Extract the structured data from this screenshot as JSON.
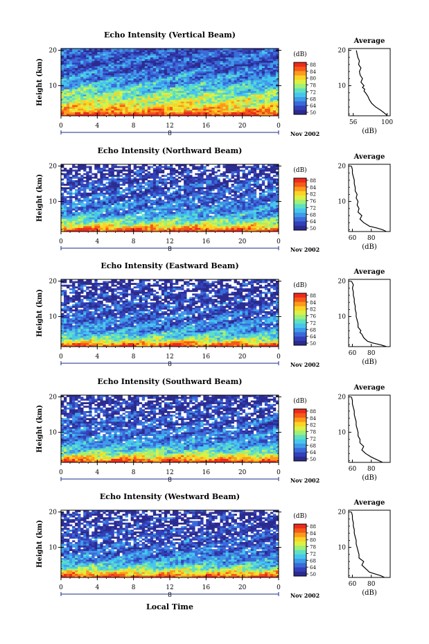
{
  "figure": {
    "date_label": "Nov 2002",
    "day_label": "8",
    "xlabel": "Local Time",
    "ylabel": "Height (km)",
    "colorbar_unit": "(dB)",
    "average_title": "Average",
    "average_xlabel": "(dB)"
  },
  "colormap": [
    "#2b2b8f",
    "#3340b8",
    "#3a6ad8",
    "#3f9be8",
    "#46c6ee",
    "#5fe0c0",
    "#9ef07a",
    "#dcf044",
    "#fcd324",
    "#fb9a1c",
    "#f55a18",
    "#ef2a1c"
  ],
  "chart_data": [
    {
      "type": "heatmap",
      "title": "Echo Intensity (Vertical Beam)",
      "xlabel": "Local Time",
      "ylabel": "Height (km)",
      "x_ticks": [
        "0",
        "4",
        "8",
        "12",
        "16",
        "20",
        "0"
      ],
      "y_ticks": [
        "10",
        "20"
      ],
      "xlim": [
        0,
        24
      ],
      "ylim": [
        1.5,
        20.5
      ],
      "colorbar": {
        "label": "(dB)",
        "ticks": [
          "50",
          "64",
          "68",
          "72",
          "78",
          "80",
          "84",
          "88"
        ],
        "range": [
          50,
          88
        ]
      },
      "profile_db": [
        [
          1.5,
          88
        ],
        [
          3,
          79
        ],
        [
          5,
          74
        ],
        [
          8,
          68
        ],
        [
          12,
          60
        ],
        [
          16,
          56
        ],
        [
          20,
          54
        ]
      ],
      "average_profile": {
        "title": "Average",
        "xlabel": "(dB)",
        "x_ticks": [
          "56",
          "100"
        ],
        "y_ticks": [
          "10",
          "20"
        ],
        "xlim": [
          50,
          104
        ],
        "ylim": [
          1.5,
          20.5
        ],
        "points": [
          [
            1.5,
            100
          ],
          [
            2,
            98
          ],
          [
            3,
            92
          ],
          [
            4,
            85
          ],
          [
            5,
            80
          ],
          [
            6,
            77
          ],
          [
            7,
            75
          ],
          [
            8,
            72
          ],
          [
            8.5,
            70
          ],
          [
            9,
            71
          ],
          [
            9.5,
            68
          ],
          [
            10,
            70
          ],
          [
            11,
            66
          ],
          [
            12,
            68
          ],
          [
            13,
            65
          ],
          [
            14,
            64
          ],
          [
            15,
            66
          ],
          [
            16,
            63
          ],
          [
            17,
            64
          ],
          [
            18,
            62
          ],
          [
            19,
            61
          ],
          [
            20,
            60
          ]
        ]
      }
    },
    {
      "type": "heatmap",
      "title": "Echo Intensity (Northward Beam)",
      "xlabel": "Local Time",
      "ylabel": "Height (km)",
      "x_ticks": [
        "0",
        "4",
        "8",
        "12",
        "16",
        "20",
        "0"
      ],
      "y_ticks": [
        "10",
        "20"
      ],
      "xlim": [
        0,
        24
      ],
      "ylim": [
        1.5,
        20.5
      ],
      "colorbar": {
        "label": "(dB)",
        "ticks": [
          "50",
          "64",
          "68",
          "72",
          "76",
          "82",
          "84",
          "88"
        ],
        "range": [
          50,
          88
        ]
      },
      "profile_db": [
        [
          1.5,
          86
        ],
        [
          2.5,
          80
        ],
        [
          4,
          70
        ],
        [
          6,
          62
        ],
        [
          10,
          58
        ],
        [
          15,
          55
        ],
        [
          20,
          52
        ]
      ],
      "average_profile": {
        "title": "Average",
        "xlabel": "(dB)",
        "x_ticks": [
          "60",
          "80"
        ],
        "y_ticks": [
          "10",
          "20"
        ],
        "xlim": [
          56,
          100
        ],
        "ylim": [
          1.5,
          20.5
        ],
        "points": [
          [
            1.5,
            96
          ],
          [
            2,
            92
          ],
          [
            2.5,
            86
          ],
          [
            3,
            78
          ],
          [
            4,
            72
          ],
          [
            5,
            68
          ],
          [
            6,
            70
          ],
          [
            7,
            66
          ],
          [
            8,
            67
          ],
          [
            9,
            65
          ],
          [
            10,
            66
          ],
          [
            11,
            64
          ],
          [
            12,
            65
          ],
          [
            13,
            63
          ],
          [
            14,
            63
          ],
          [
            15,
            62
          ],
          [
            16,
            62
          ],
          [
            17,
            61
          ],
          [
            18,
            60
          ],
          [
            19,
            60
          ],
          [
            20,
            59
          ]
        ]
      }
    },
    {
      "type": "heatmap",
      "title": "Echo Intensity (Eastward Beam)",
      "xlabel": "Local Time",
      "ylabel": "Height (km)",
      "x_ticks": [
        "0",
        "4",
        "8",
        "12",
        "16",
        "20",
        "0"
      ],
      "y_ticks": [
        "10",
        "20"
      ],
      "xlim": [
        0,
        24
      ],
      "ylim": [
        1.5,
        20.5
      ],
      "colorbar": {
        "label": "(dB)",
        "ticks": [
          "50",
          "64",
          "68",
          "72",
          "76",
          "82",
          "84",
          "88"
        ],
        "range": [
          50,
          88
        ]
      },
      "profile_db": [
        [
          1.5,
          86
        ],
        [
          2.5,
          78
        ],
        [
          4,
          68
        ],
        [
          6,
          61
        ],
        [
          10,
          57
        ],
        [
          15,
          54
        ],
        [
          20,
          52
        ]
      ],
      "average_profile": {
        "title": "Average",
        "xlabel": "(dB)",
        "x_ticks": [
          "60",
          "80"
        ],
        "y_ticks": [
          "10",
          "20"
        ],
        "xlim": [
          56,
          100
        ],
        "ylim": [
          1.5,
          20.5
        ],
        "points": [
          [
            1.5,
            96
          ],
          [
            2,
            90
          ],
          [
            2.5,
            82
          ],
          [
            3,
            76
          ],
          [
            4,
            72
          ],
          [
            5,
            70
          ],
          [
            5.5,
            68
          ],
          [
            6,
            69
          ],
          [
            7,
            66
          ],
          [
            8,
            66
          ],
          [
            9,
            65
          ],
          [
            10,
            64
          ],
          [
            11,
            64
          ],
          [
            12,
            63
          ],
          [
            13,
            63
          ],
          [
            14,
            62
          ],
          [
            15,
            62
          ],
          [
            16,
            61
          ],
          [
            17,
            61
          ],
          [
            18,
            60
          ],
          [
            19,
            61
          ],
          [
            20,
            59
          ]
        ]
      }
    },
    {
      "type": "heatmap",
      "title": "Echo Intensity (Southward Beam)",
      "xlabel": "Local Time",
      "ylabel": "Height (km)",
      "x_ticks": [
        "0",
        "4",
        "8",
        "12",
        "16",
        "20",
        "0"
      ],
      "y_ticks": [
        "10",
        "20"
      ],
      "xlim": [
        0,
        24
      ],
      "ylim": [
        1.5,
        20.5
      ],
      "colorbar": {
        "label": "(dB)",
        "ticks": [
          "50",
          "64",
          "68",
          "72",
          "78",
          "82",
          "84",
          "88"
        ],
        "range": [
          50,
          88
        ]
      },
      "profile_db": [
        [
          1.5,
          86
        ],
        [
          2.5,
          79
        ],
        [
          4,
          70
        ],
        [
          6,
          62
        ],
        [
          10,
          58
        ],
        [
          15,
          55
        ],
        [
          20,
          52
        ]
      ],
      "average_profile": {
        "title": "Average",
        "xlabel": "(dB)",
        "x_ticks": [
          "60",
          "80"
        ],
        "y_ticks": [
          "10",
          "20"
        ],
        "xlim": [
          56,
          100
        ],
        "ylim": [
          1.5,
          20.5
        ],
        "points": [
          [
            1.5,
            92
          ],
          [
            2,
            88
          ],
          [
            2.5,
            84
          ],
          [
            3,
            80
          ],
          [
            4,
            74
          ],
          [
            5,
            70
          ],
          [
            6,
            72
          ],
          [
            7,
            68
          ],
          [
            8,
            68
          ],
          [
            9,
            66
          ],
          [
            10,
            66
          ],
          [
            11,
            65
          ],
          [
            12,
            64
          ],
          [
            13,
            64
          ],
          [
            14,
            63
          ],
          [
            15,
            62
          ],
          [
            16,
            62
          ],
          [
            17,
            61
          ],
          [
            18,
            60
          ],
          [
            19,
            60
          ],
          [
            20,
            59
          ]
        ]
      }
    },
    {
      "type": "heatmap",
      "title": "Echo Intensity (Westward Beam)",
      "xlabel": "Local Time",
      "ylabel": "Height (km)",
      "x_ticks": [
        "0",
        "4",
        "8",
        "12",
        "16",
        "20",
        "0"
      ],
      "y_ticks": [
        "10",
        "20"
      ],
      "xlim": [
        0,
        24
      ],
      "ylim": [
        1.5,
        20.5
      ],
      "colorbar": {
        "label": "(dB)",
        "ticks": [
          "50",
          "64",
          "68",
          "72",
          "78",
          "80",
          "84",
          "88"
        ],
        "range": [
          50,
          88
        ]
      },
      "profile_db": [
        [
          1.5,
          86
        ],
        [
          2.5,
          79
        ],
        [
          4,
          69
        ],
        [
          6,
          61
        ],
        [
          10,
          57
        ],
        [
          15,
          54
        ],
        [
          20,
          52
        ]
      ],
      "average_profile": {
        "title": "Average",
        "xlabel": "(dB)",
        "x_ticks": [
          "60",
          "80"
        ],
        "y_ticks": [
          "10",
          "20"
        ],
        "xlim": [
          56,
          100
        ],
        "ylim": [
          1.5,
          20.5
        ],
        "points": [
          [
            1.5,
            94
          ],
          [
            2,
            90
          ],
          [
            2.5,
            84
          ],
          [
            3,
            78
          ],
          [
            4,
            74
          ],
          [
            5,
            70
          ],
          [
            6,
            72
          ],
          [
            7,
            67
          ],
          [
            8,
            67
          ],
          [
            9,
            66
          ],
          [
            10,
            65
          ],
          [
            11,
            64
          ],
          [
            12,
            64
          ],
          [
            13,
            63
          ],
          [
            14,
            62
          ],
          [
            15,
            62
          ],
          [
            16,
            61
          ],
          [
            17,
            61
          ],
          [
            18,
            60
          ],
          [
            19,
            60
          ],
          [
            20,
            59
          ]
        ]
      }
    }
  ]
}
